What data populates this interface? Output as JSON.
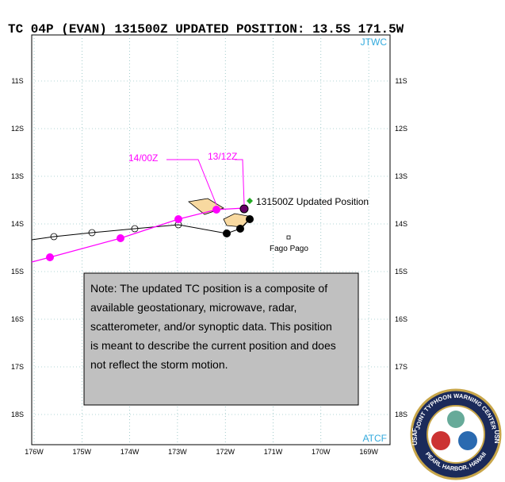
{
  "header": {
    "title": "TC 04P (EVAN) 131500Z UPDATED POSITION: 13.5S 171.5W"
  },
  "map": {
    "source_top": "JTWC",
    "source_bottom": "ATCF",
    "lat_labels": [
      "11S",
      "12S",
      "13S",
      "14S",
      "15S",
      "16S",
      "17S",
      "18S"
    ],
    "lon_labels": [
      "176W",
      "175W",
      "174W",
      "173W",
      "172W",
      "171W",
      "170W",
      "169W"
    ],
    "annotations": {
      "label_1400z": "14/00Z",
      "label_1312z": "13/12Z",
      "updated_position": "131500Z Updated Position",
      "city": "Fago Pago"
    }
  },
  "note": {
    "lines": [
      "Note:  The updated TC position is a composite of",
      "available geostationary, microwave, radar,",
      "scatterometer, and/or synoptic data.   This position",
      "is meant to describe the current position and does",
      "not reflect the storm motion."
    ]
  },
  "logo": {
    "top": "JOINT TYPHOON WARNING CENTER",
    "bottom": "PEARL HARBOR, HAWAII",
    "left": "USAF",
    "right": "USN"
  }
}
